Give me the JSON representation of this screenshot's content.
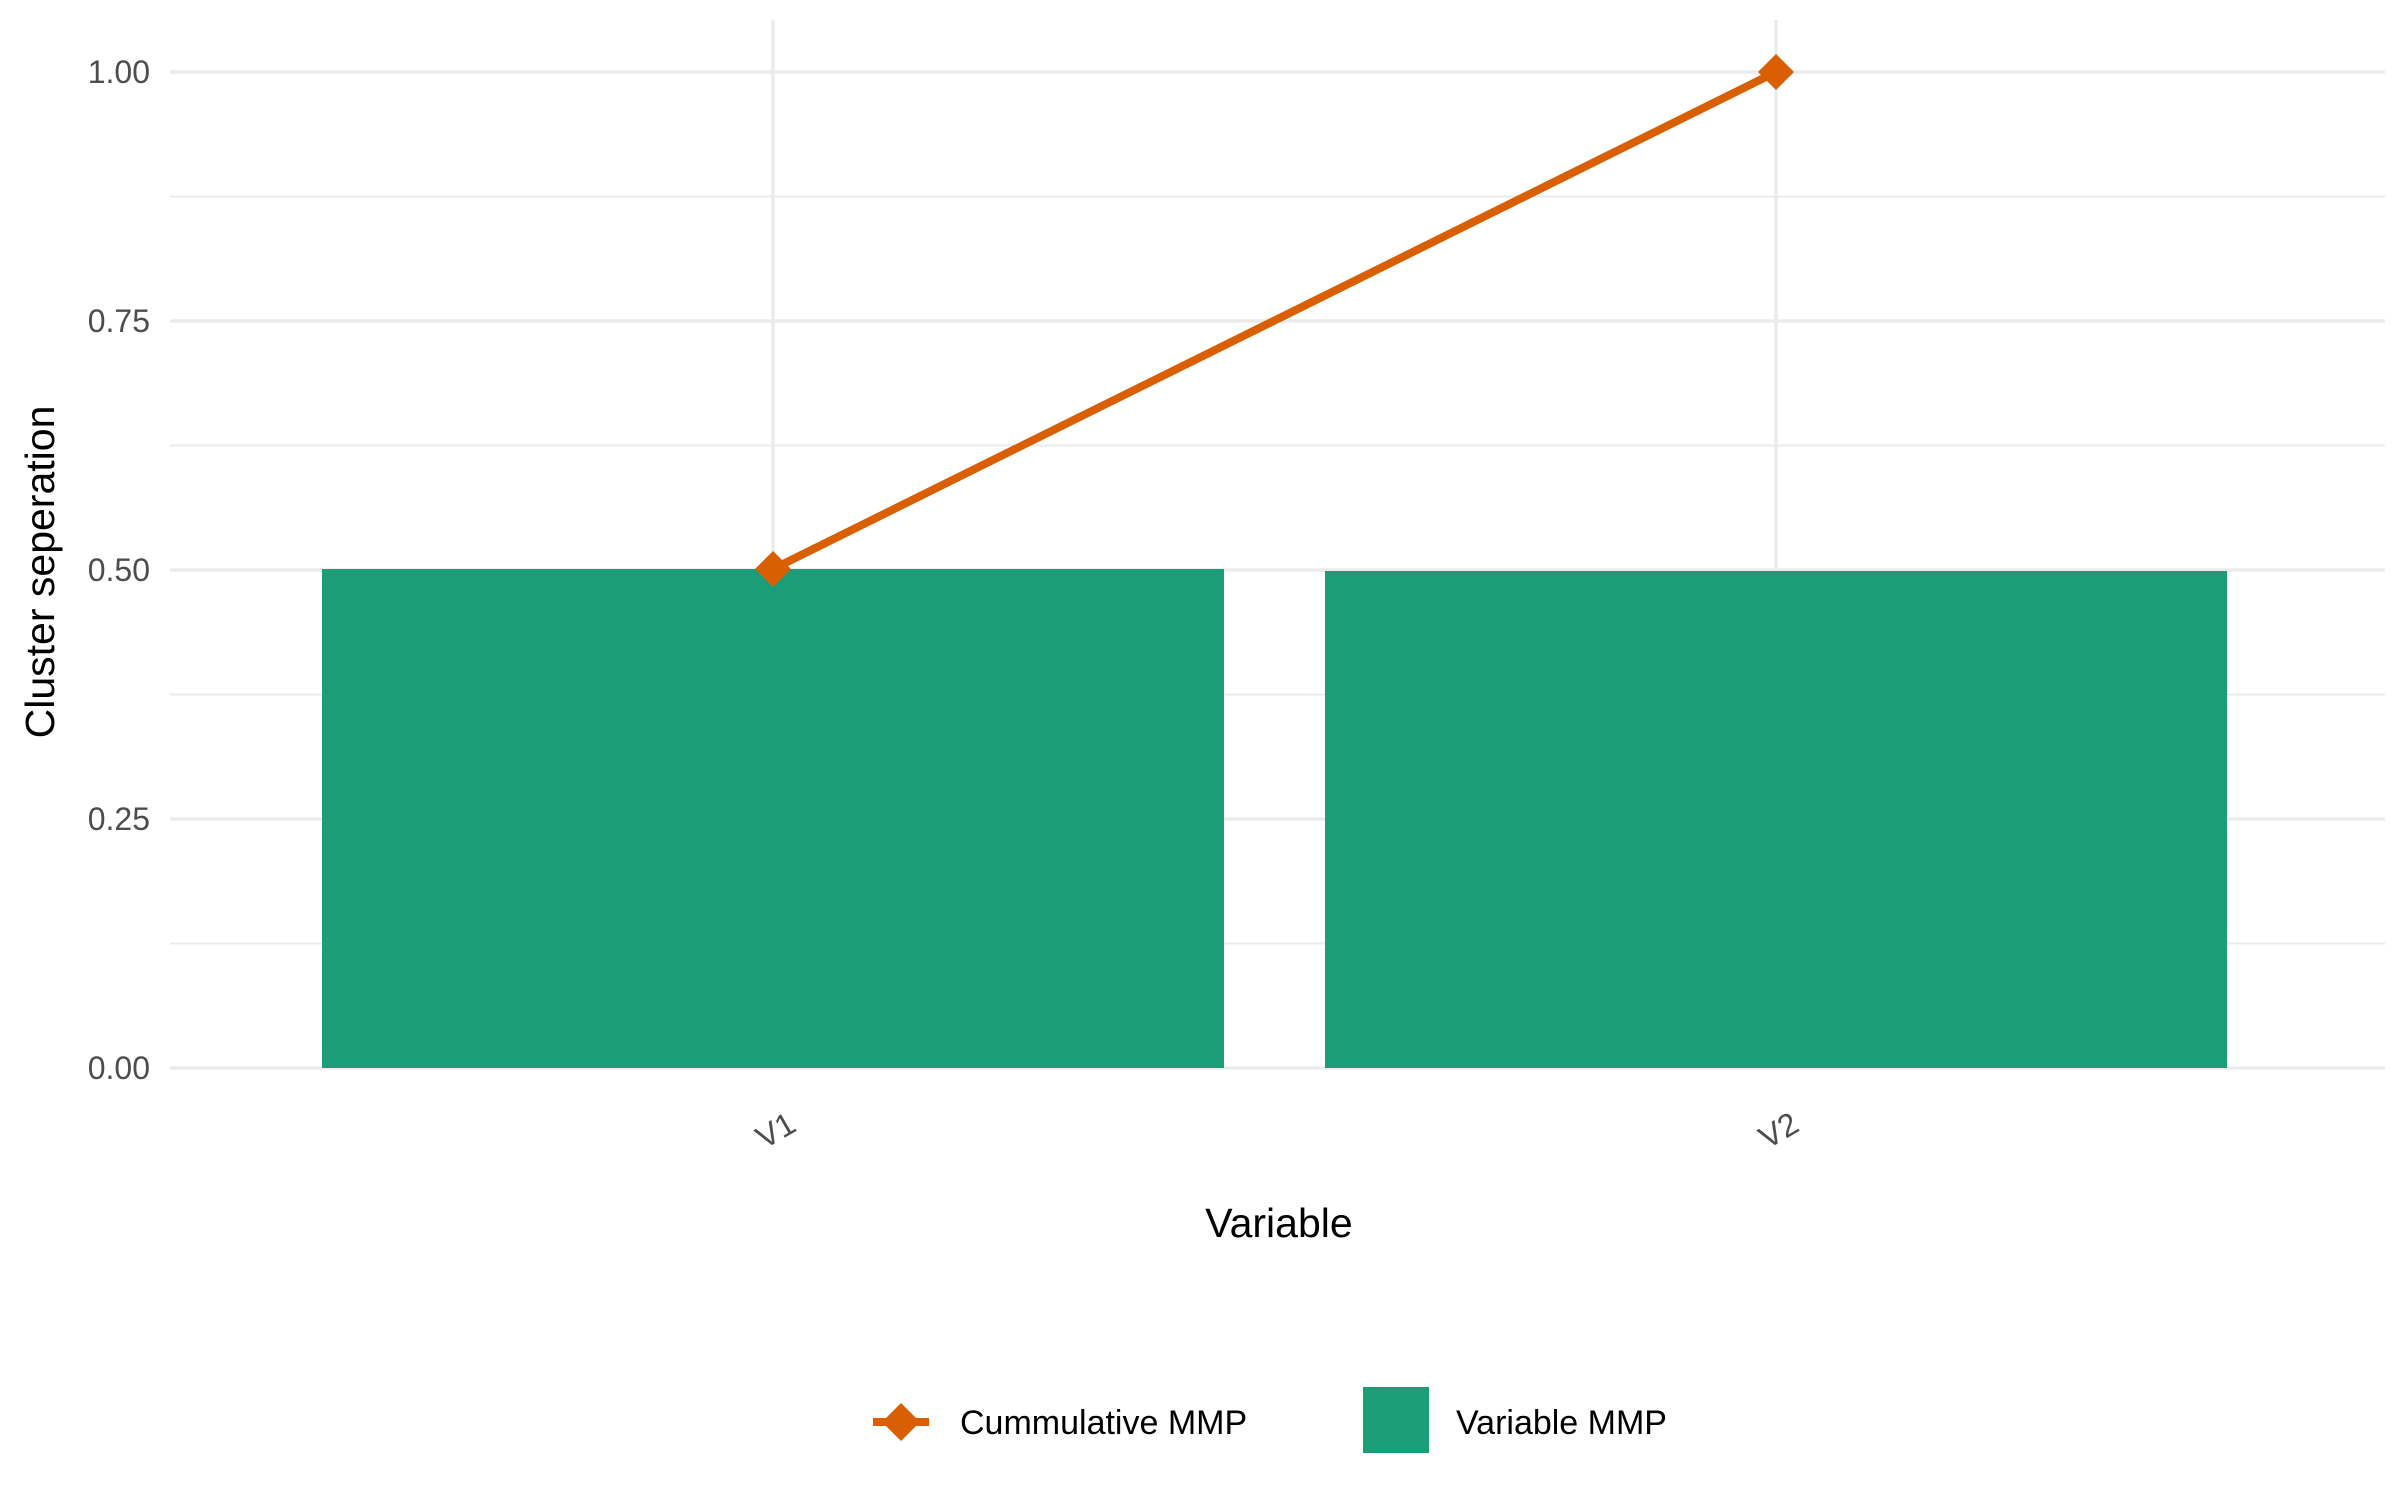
{
  "chart_data": {
    "type": "bar",
    "categories": [
      "V1",
      "V2"
    ],
    "series": [
      {
        "name": "Variable MMP",
        "type": "bar",
        "values": [
          0.501,
          0.499
        ],
        "color": "#1b9e77"
      },
      {
        "name": "Cummulative MMP",
        "type": "line",
        "marker": "diamond",
        "values": [
          0.501,
          1.0
        ],
        "color": "#d95f02"
      }
    ],
    "xlabel": "Variable",
    "ylabel": "Cluster seperation",
    "ylim": [
      0,
      1.0
    ],
    "yticks": [
      0.0,
      0.25,
      0.5,
      0.75,
      1.0
    ],
    "ytick_labels": [
      "0.00",
      "0.25",
      "0.50",
      "0.75",
      "1.00"
    ],
    "grid": true,
    "legend_position": "bottom",
    "colors": {
      "grid": "#ebebeb",
      "tick_text": "#4d4d4d",
      "background": "#ffffff"
    }
  }
}
